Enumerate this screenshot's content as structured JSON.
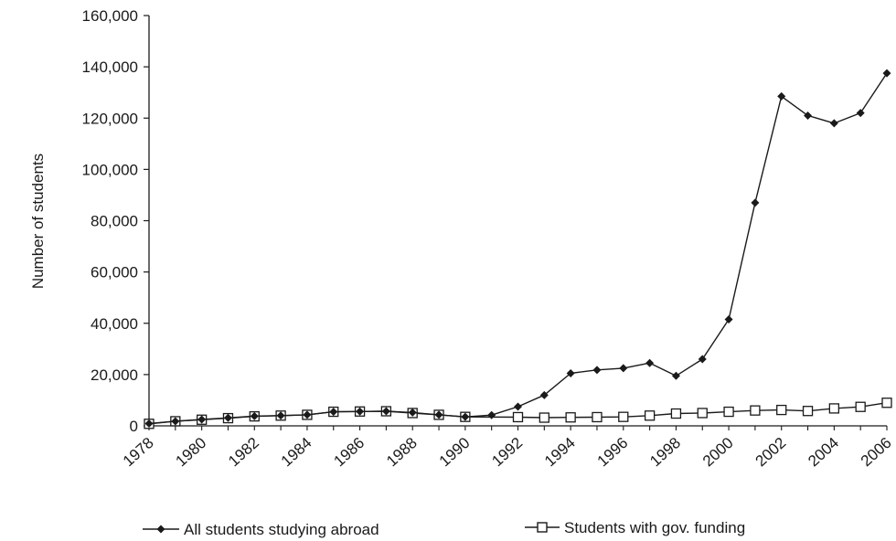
{
  "chart_data": {
    "type": "line",
    "ylabel": "Number of students",
    "ylim": [
      0,
      160000
    ],
    "yticks": [
      "0",
      "20,000",
      "40,000",
      "60,000",
      "80,000",
      "100,000",
      "120,000",
      "140,000",
      "160,000"
    ],
    "xlim": [
      1978,
      2006
    ],
    "xticks": [
      "1978",
      "1980",
      "1982",
      "1984",
      "1986",
      "1988",
      "1990",
      "1992",
      "1994",
      "1996",
      "1998",
      "2000",
      "2002",
      "2004",
      "2006"
    ],
    "grid": false,
    "legend_position": "bottom",
    "x": [
      1978,
      1979,
      1980,
      1981,
      1982,
      1983,
      1984,
      1985,
      1986,
      1987,
      1988,
      1989,
      1990,
      1991,
      1992,
      1993,
      1994,
      1995,
      1996,
      1997,
      1998,
      1999,
      2000,
      2001,
      2002,
      2003,
      2004,
      2005,
      2006
    ],
    "series": [
      {
        "name": "All students studying abroad",
        "marker": "diamond",
        "values": [
          900,
          1800,
          2500,
          3100,
          3800,
          4000,
          4300,
          5500,
          5600,
          5700,
          5200,
          4300,
          3500,
          4200,
          7500,
          12000,
          20500,
          21800,
          22500,
          24500,
          19500,
          26000,
          41500,
          87000,
          128500,
          121000,
          118000,
          122000,
          137500
        ]
      },
      {
        "name": "Students with gov. funding",
        "marker": "square-open",
        "values": [
          800,
          1800,
          2400,
          3000,
          3700,
          4000,
          4300,
          5500,
          5600,
          5700,
          5000,
          4300,
          3500,
          null,
          3400,
          3200,
          3300,
          3400,
          3500,
          4000,
          4800,
          5000,
          5500,
          6000,
          6200,
          5800,
          6800,
          7400,
          9000
        ]
      }
    ]
  }
}
